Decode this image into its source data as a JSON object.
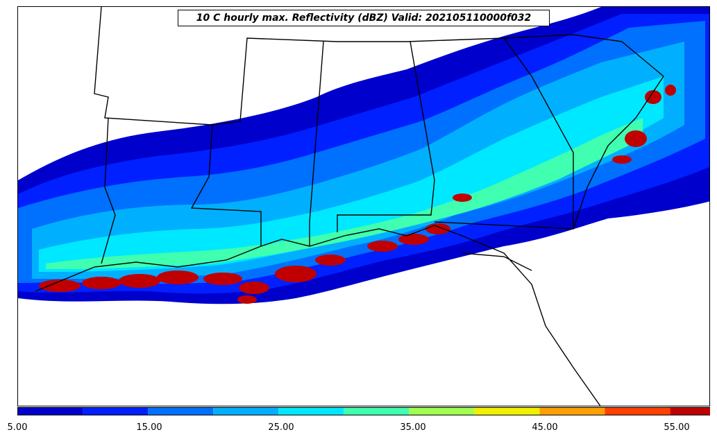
{
  "title": "10 C hourly max. Reflectivity (dBZ) Valid: 202105110000f032",
  "colorbar": {
    "colors": [
      "#0000cd",
      "#0020ff",
      "#0070ff",
      "#00b0ff",
      "#00e8ff",
      "#40ffb0",
      "#a0ff50",
      "#f0f000",
      "#ffa000",
      "#ff4000",
      "#c00000"
    ],
    "extend_color": "#a00000",
    "tick_labels": [
      "5.00",
      "15.00",
      "25.00",
      "35.00",
      "45.00",
      "55.00"
    ]
  },
  "legend_levels": [
    5,
    10,
    15,
    20,
    25,
    30,
    35,
    40,
    45,
    50,
    55
  ]
}
